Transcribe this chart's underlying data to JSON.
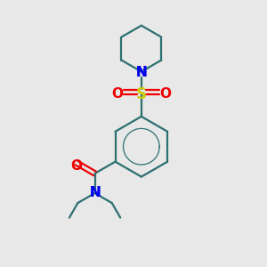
{
  "bg_color": "#e8e8e8",
  "bond_color": "#2d7070",
  "N_color": "#0000ee",
  "O_color": "#ee0000",
  "S_color": "#cccc00",
  "line_width": 1.6,
  "figsize": [
    3.0,
    3.0
  ],
  "dpi": 100,
  "xlim": [
    0,
    10
  ],
  "ylim": [
    0,
    10
  ]
}
